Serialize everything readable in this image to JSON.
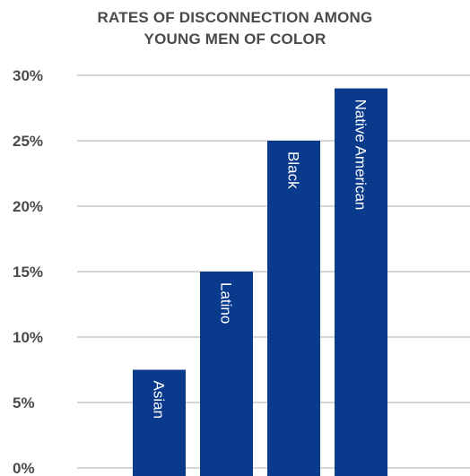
{
  "chart_data": {
    "type": "bar",
    "title_lines": [
      "RATES OF DISCONNECTION AMONG",
      "YOUNG MEN OF COLOR"
    ],
    "categories": [
      "Asian",
      "Latino",
      "Black",
      "Native American"
    ],
    "values": [
      7.5,
      15,
      25,
      29
    ],
    "ylim": [
      0,
      30
    ],
    "yticks": [
      "0%",
      "5%",
      "10%",
      "15%",
      "20%",
      "25%",
      "30%"
    ],
    "ytick_values": [
      0,
      5,
      10,
      15,
      20,
      25,
      30
    ],
    "grid": true,
    "legend": "none",
    "bar_color": "#0a3a8c",
    "grid_color": "#c8c8c8",
    "label_color": "#ffffff",
    "text_color": "#4a4a4a"
  }
}
